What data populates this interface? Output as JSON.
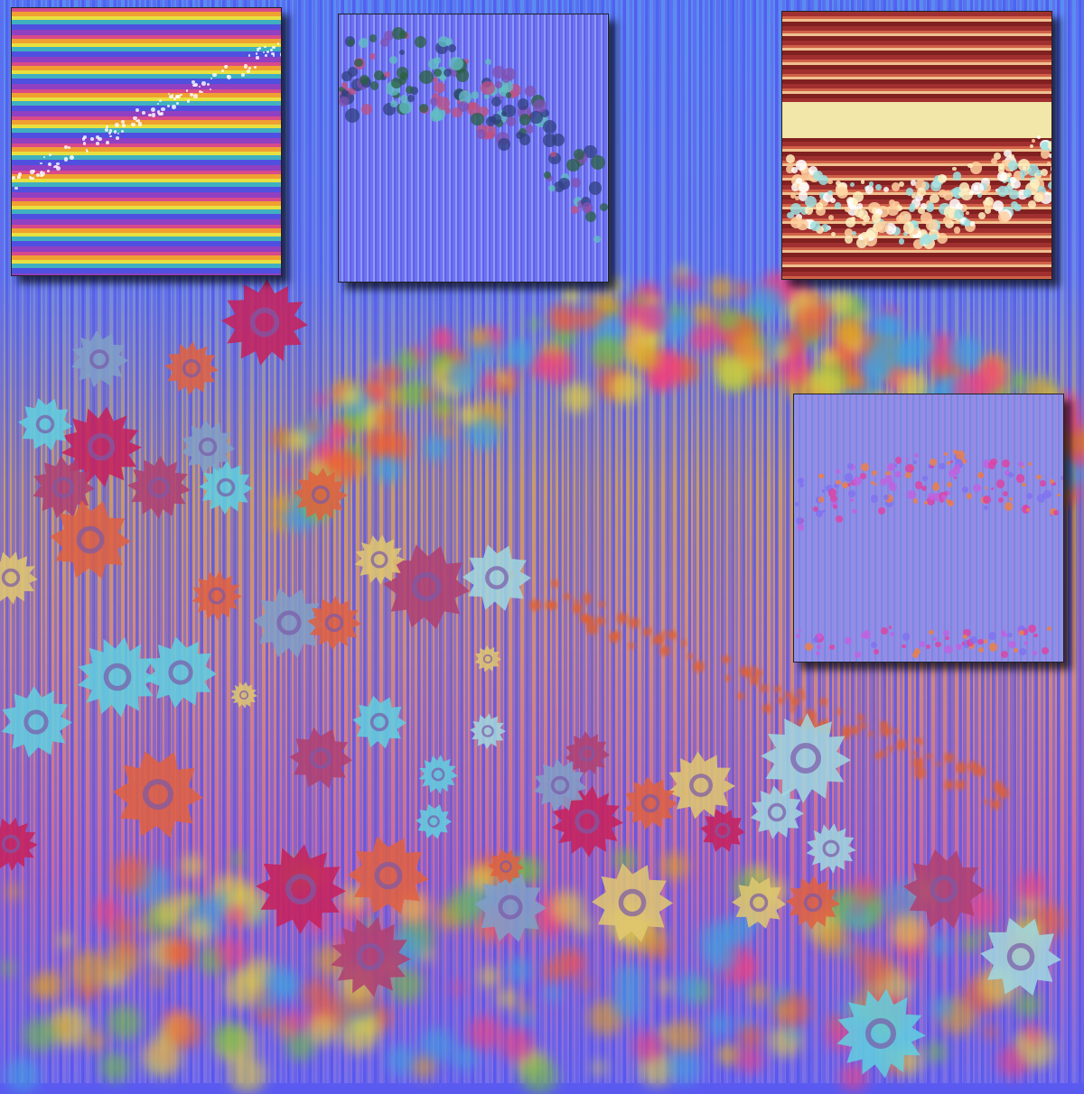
{
  "palette": {
    "background_stripe": "#5a5af0",
    "flower_colors": [
      "#c8205a",
      "#e0c870",
      "#60d0e0",
      "#80a0c8",
      "#e06040",
      "#b04070",
      "#a0d8e0"
    ]
  },
  "insets": [
    {
      "name": "rainbow-stripes-panel"
    },
    {
      "name": "blue-flower-scatter-panel"
    },
    {
      "name": "red-sparkle-panel"
    },
    {
      "name": "lavender-dots-panel"
    }
  ]
}
